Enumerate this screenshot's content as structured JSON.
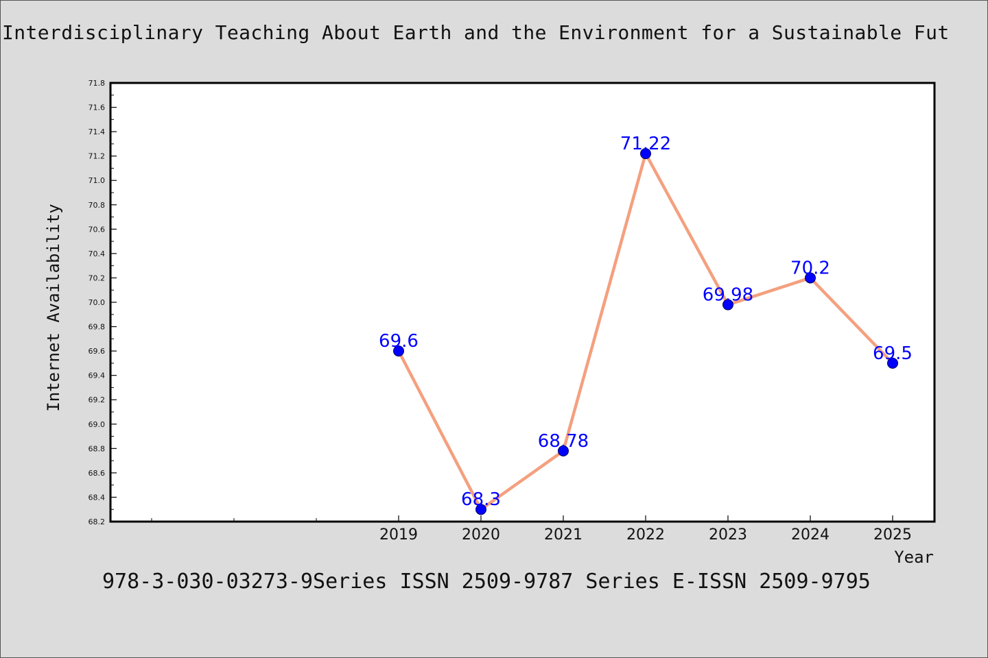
{
  "chart_data": {
    "type": "line",
    "title": "Interdisciplinary Teaching About Earth and the Environment for a Sustainable Fut",
    "xlabel": "Year",
    "ylabel": "Internet Availability",
    "categories": [
      "2019",
      "2020",
      "2021",
      "2022",
      "2023",
      "2024",
      "2025"
    ],
    "values": [
      69.6,
      68.3,
      68.78,
      71.22,
      69.98,
      70.2,
      69.5
    ],
    "data_labels": [
      "69.6",
      "68.3",
      "68.78",
      "71.22",
      "69.98",
      "70.2",
      "69.5"
    ],
    "ylim": [
      68.2,
      71.8
    ],
    "yticks": [
      "68.2",
      "68.4",
      "68.6",
      "68.8",
      "69.0",
      "69.2",
      "69.4",
      "69.6",
      "69.8",
      "70.0",
      "70.2",
      "70.4",
      "70.6",
      "70.8",
      "71.0",
      "71.2",
      "71.4",
      "71.6",
      "71.8"
    ],
    "grid": false,
    "legend": "none",
    "colors": {
      "line": "#f4a07f",
      "marker": "#0000ff",
      "label": "#0000ff",
      "background": "#dcdcdc",
      "plot_area": "#ffffff"
    }
  },
  "footer": {
    "text": "978-3-030-03273-9Series ISSN 2509-9787 Series E-ISSN 2509-9795"
  }
}
